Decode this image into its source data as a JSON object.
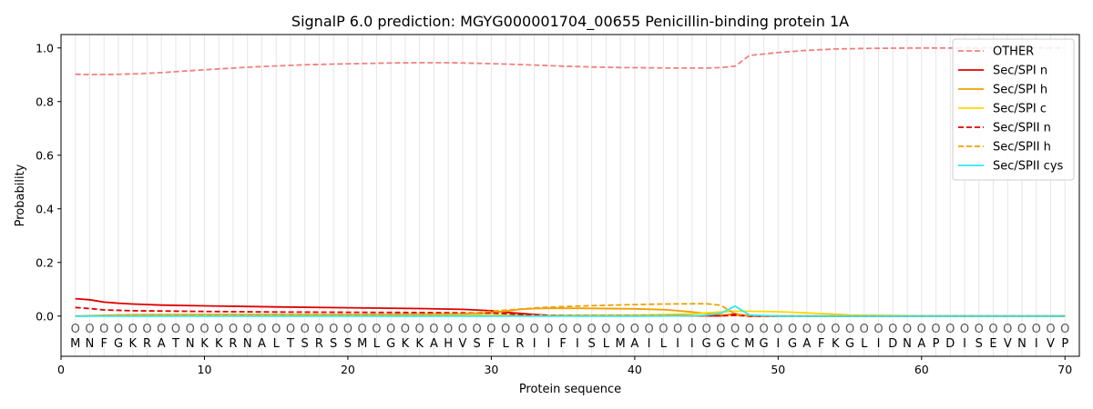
{
  "chart_data": {
    "type": "line",
    "title": "SignalP 6.0 prediction: MGYG000001704_00655 Penicillin-binding protein 1A",
    "xlabel": "Protein sequence",
    "ylabel": "Probability",
    "xlim": [
      0,
      71
    ],
    "ylim": [
      -0.15,
      1.05
    ],
    "x_ticks": [
      0,
      10,
      20,
      30,
      40,
      50,
      60,
      70
    ],
    "y_ticks": [
      0.0,
      0.2,
      0.4,
      0.6,
      0.8,
      1.0
    ],
    "y_tick_labels": [
      "0.0",
      "0.2",
      "0.4",
      "0.6",
      "0.8",
      "1.0"
    ],
    "grid": "vertical lines at each residue",
    "legend_position": "top-right",
    "sequence": [
      "M",
      "N",
      "F",
      "G",
      "K",
      "R",
      "A",
      "T",
      "N",
      "K",
      "K",
      "R",
      "N",
      "A",
      "L",
      "T",
      "S",
      "R",
      "S",
      "S",
      "M",
      "L",
      "G",
      "K",
      "K",
      "A",
      "H",
      "V",
      "S",
      "F",
      "L",
      "R",
      "I",
      "I",
      "F",
      "I",
      "S",
      "L",
      "M",
      "A",
      "I",
      "L",
      "I",
      "I",
      "G",
      "G",
      "C",
      "M",
      "G",
      "I",
      "G",
      "A",
      "F",
      "K",
      "G",
      "L",
      "I",
      "D",
      "N",
      "A",
      "P",
      "D",
      "I",
      "S",
      "E",
      "V",
      "N",
      "I",
      "V",
      "P"
    ],
    "region_label": "O",
    "series": [
      {
        "name": "OTHER",
        "color": "#f08080",
        "dash": "dashed",
        "x": [
          1,
          2,
          3,
          5,
          7,
          9,
          11,
          13,
          15,
          17,
          19,
          21,
          23,
          25,
          27,
          29,
          31,
          33,
          35,
          37,
          39,
          41,
          43,
          45,
          46,
          47,
          48,
          50,
          52,
          54,
          56,
          58,
          60,
          62,
          64,
          66,
          68,
          70
        ],
        "y": [
          0.902,
          0.901,
          0.901,
          0.903,
          0.908,
          0.915,
          0.922,
          0.928,
          0.933,
          0.937,
          0.94,
          0.942,
          0.944,
          0.945,
          0.945,
          0.943,
          0.94,
          0.936,
          0.932,
          0.929,
          0.927,
          0.926,
          0.925,
          0.925,
          0.927,
          0.932,
          0.972,
          0.983,
          0.991,
          0.996,
          0.998,
          0.999,
          1.0,
          1.0,
          1.0,
          1.0,
          1.0,
          1.0
        ]
      },
      {
        "name": "Sec/SPI n",
        "color": "#e00000",
        "dash": "solid",
        "x": [
          1,
          2,
          3,
          4,
          5,
          7,
          10,
          15,
          20,
          25,
          28,
          30,
          31,
          32,
          33,
          34,
          36,
          40,
          44,
          46,
          47,
          48,
          50,
          55,
          60,
          65,
          70
        ],
        "y": [
          0.065,
          0.061,
          0.052,
          0.048,
          0.045,
          0.041,
          0.038,
          0.034,
          0.031,
          0.028,
          0.025,
          0.02,
          0.014,
          0.01,
          0.006,
          0.003,
          0.002,
          0.001,
          0.001,
          0.001,
          0.008,
          0.0,
          0.0,
          0.0,
          0.0,
          0.0,
          0.0
        ]
      },
      {
        "name": "Sec/SPI h",
        "color": "#f0a000",
        "dash": "solid",
        "x": [
          1,
          3,
          5,
          10,
          20,
          28,
          30,
          31,
          32,
          33,
          34,
          36,
          40,
          42,
          43,
          44,
          45,
          46,
          47,
          48,
          50,
          55,
          60,
          65,
          70
        ],
        "y": [
          0.0,
          0.003,
          0.005,
          0.006,
          0.006,
          0.008,
          0.012,
          0.018,
          0.025,
          0.028,
          0.029,
          0.029,
          0.027,
          0.024,
          0.02,
          0.015,
          0.01,
          0.005,
          0.003,
          0.001,
          0.0,
          0.0,
          0.0,
          0.0,
          0.0
        ]
      },
      {
        "name": "Sec/SPI c",
        "color": "#ffd700",
        "dash": "solid",
        "x": [
          1,
          5,
          10,
          20,
          30,
          35,
          40,
          44,
          45,
          46,
          47,
          48,
          50,
          52,
          54,
          55,
          58,
          60,
          65,
          70
        ],
        "y": [
          0.0,
          0.002,
          0.003,
          0.003,
          0.003,
          0.003,
          0.004,
          0.008,
          0.012,
          0.015,
          0.018,
          0.018,
          0.016,
          0.012,
          0.007,
          0.004,
          0.002,
          0.001,
          0.0,
          0.0
        ]
      },
      {
        "name": "Sec/SPII n",
        "color": "#e00000",
        "dash": "dashed",
        "x": [
          1,
          2,
          3,
          5,
          10,
          15,
          20,
          25,
          28,
          30,
          31,
          32,
          33,
          34,
          36,
          40,
          44,
          46,
          47,
          48,
          50,
          55,
          60,
          65,
          70
        ],
        "y": [
          0.032,
          0.028,
          0.023,
          0.02,
          0.017,
          0.015,
          0.014,
          0.013,
          0.012,
          0.011,
          0.009,
          0.006,
          0.004,
          0.002,
          0.001,
          0.001,
          0.001,
          0.001,
          0.003,
          0.0,
          0.0,
          0.0,
          0.0,
          0.0,
          0.0
        ]
      },
      {
        "name": "Sec/SPII h",
        "color": "#f0a000",
        "dash": "dashed",
        "x": [
          1,
          5,
          10,
          20,
          28,
          29,
          30,
          31,
          32,
          33,
          34,
          36,
          38,
          40,
          42,
          44,
          45,
          46,
          47,
          48,
          50,
          55,
          60,
          65,
          70
        ],
        "y": [
          0.0,
          0.003,
          0.004,
          0.005,
          0.008,
          0.012,
          0.018,
          0.022,
          0.026,
          0.03,
          0.033,
          0.037,
          0.04,
          0.043,
          0.045,
          0.046,
          0.046,
          0.04,
          0.008,
          0.002,
          0.0,
          0.0,
          0.0,
          0.0,
          0.0
        ]
      },
      {
        "name": "Sec/SPII cys",
        "color": "#30e8f0",
        "dash": "solid",
        "x": [
          1,
          5,
          10,
          20,
          30,
          40,
          44,
          45,
          46,
          47,
          48,
          50,
          55,
          60,
          65,
          70
        ],
        "y": [
          0.0,
          0.0,
          0.0,
          0.0,
          0.0,
          0.0,
          0.001,
          0.003,
          0.01,
          0.037,
          0.004,
          0.0,
          0.0,
          0.0,
          0.0,
          0.0
        ]
      }
    ]
  }
}
